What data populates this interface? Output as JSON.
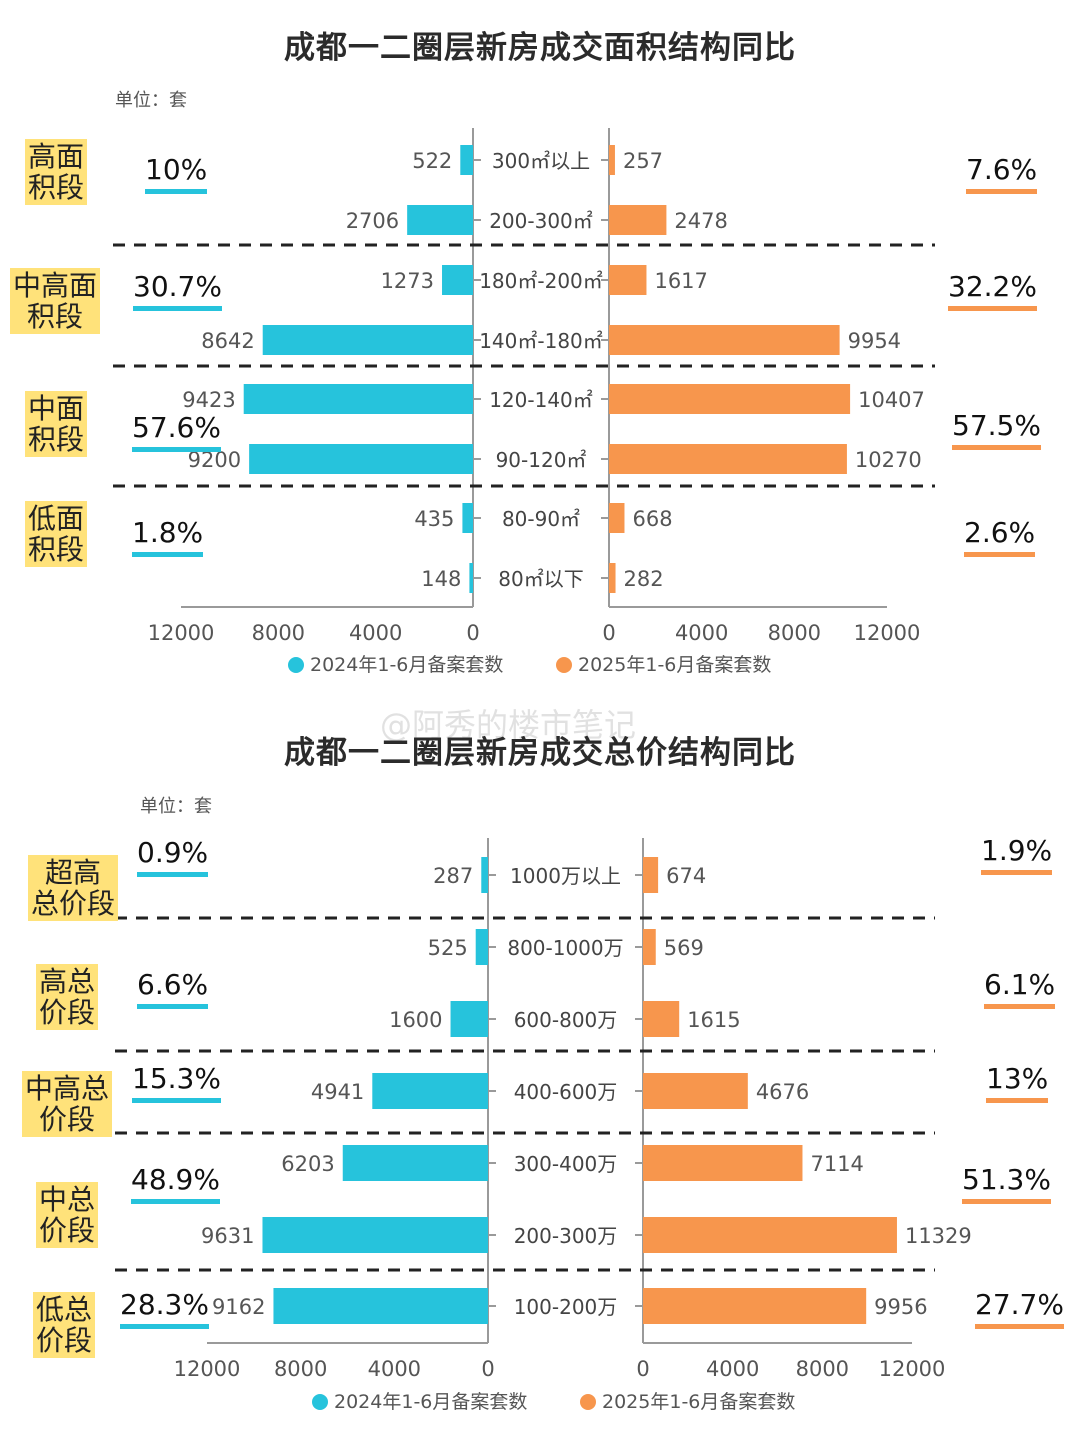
{
  "colors": {
    "left": "#26c3dc",
    "right": "#f7964d",
    "highlight": "#ffe27a",
    "axis": "#9a9a9a"
  },
  "watermark": "@阿秀的楼市笔记",
  "chart_data": [
    {
      "type": "bar",
      "title": "成都一二圈层新房成交面积结构同比",
      "unit": "单位：套",
      "categories": [
        "300㎡以上",
        "200-300㎡",
        "180㎡-200㎡",
        "140㎡-180㎡",
        "120-140㎡",
        "90-120㎡",
        "80-90㎡",
        "80㎡以下"
      ],
      "series": [
        {
          "name": "2024年1-6月备案套数",
          "values": [
            522,
            2706,
            1273,
            8642,
            9423,
            9200,
            435,
            148
          ]
        },
        {
          "name": "2025年1-6月备案套数",
          "values": [
            257,
            2478,
            1617,
            9954,
            10407,
            10270,
            668,
            282
          ]
        }
      ],
      "xlim": [
        0,
        12000
      ],
      "left_ticks": [
        "12000",
        "8000",
        "4000",
        "0"
      ],
      "right_ticks": [
        "0",
        "4000",
        "8000",
        "12000"
      ],
      "groups": [
        {
          "label": "高面\n积段",
          "left_pct": "10%",
          "right_pct": "7.6%"
        },
        {
          "label": "中高面\n积段",
          "left_pct": "30.7%",
          "right_pct": "32.2%"
        },
        {
          "label": "中面\n积段",
          "left_pct": "57.6%",
          "right_pct": "57.5%"
        },
        {
          "label": "低面\n积段",
          "left_pct": "1.8%",
          "right_pct": "2.6%"
        }
      ]
    },
    {
      "type": "bar",
      "title": "成都一二圈层新房成交总价结构同比",
      "unit": "单位：套",
      "categories": [
        "1000万以上",
        "800-1000万",
        "600-800万",
        "400-600万",
        "300-400万",
        "200-300万",
        "100-200万"
      ],
      "series": [
        {
          "name": "2024年1-6月备案套数",
          "values": [
            287,
            525,
            1600,
            4941,
            6203,
            9631,
            9162
          ]
        },
        {
          "name": "2025年1-6月备案套数",
          "values": [
            674,
            569,
            1615,
            4676,
            7114,
            11329,
            9956
          ]
        }
      ],
      "xlim": [
        0,
        12000
      ],
      "left_ticks": [
        "12000",
        "8000",
        "4000",
        "0"
      ],
      "right_ticks": [
        "0",
        "4000",
        "8000",
        "12000"
      ],
      "groups": [
        {
          "label": "超高\n总价段",
          "left_pct": "0.9%",
          "right_pct": "1.9%"
        },
        {
          "label": "高总\n价段",
          "left_pct": "6.6%",
          "right_pct": "6.1%"
        },
        {
          "label": "中高总\n价段",
          "left_pct": "15.3%",
          "right_pct": "13%"
        },
        {
          "label": "中总\n价段",
          "left_pct": "48.9%",
          "right_pct": "51.3%"
        },
        {
          "label": "低总\n价段",
          "left_pct": "28.3%",
          "right_pct": "27.7%"
        }
      ]
    }
  ]
}
